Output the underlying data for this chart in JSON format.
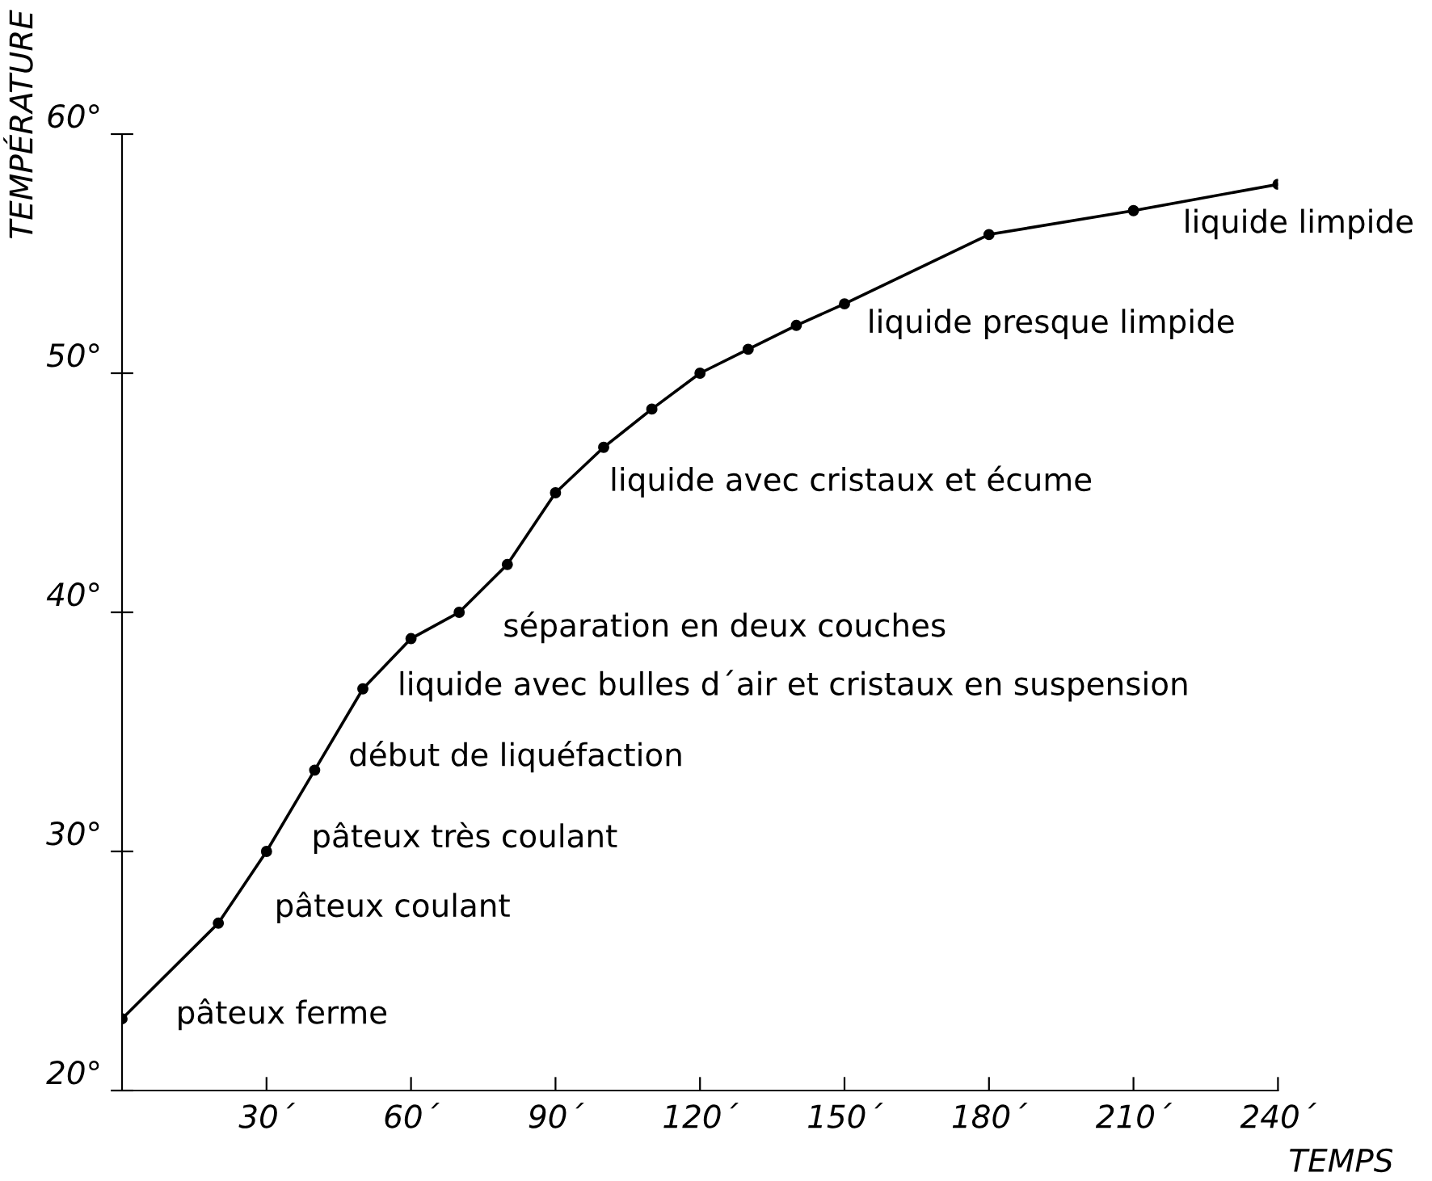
{
  "chart_data": {
    "type": "line",
    "xlabel": "TEMPS",
    "ylabel": "TEMPÉRATURE",
    "x": [
      0,
      20,
      30,
      40,
      50,
      60,
      70,
      80,
      90,
      100,
      110,
      120,
      130,
      140,
      150,
      180,
      210,
      240
    ],
    "values": [
      23,
      27,
      30,
      33.4,
      36.8,
      38.9,
      40,
      42,
      45,
      46.9,
      48.5,
      50,
      51,
      52,
      52.9,
      55.8,
      56.8,
      57.9
    ],
    "color": "#000000",
    "marker": "circle",
    "line_style": "solid",
    "xlim": [
      0,
      240
    ],
    "ylim": [
      20,
      60
    ],
    "xticks": [
      {
        "value": 30,
        "label": "30´"
      },
      {
        "value": 60,
        "label": "60´"
      },
      {
        "value": 90,
        "label": "90´"
      },
      {
        "value": 120,
        "label": "120´"
      },
      {
        "value": 150,
        "label": "150´"
      },
      {
        "value": 180,
        "label": "180´"
      },
      {
        "value": 210,
        "label": "210´"
      },
      {
        "value": 240,
        "label": "240´"
      }
    ],
    "yticks": [
      {
        "value": 20,
        "label": "20°"
      },
      {
        "value": 30,
        "label": "30°"
      },
      {
        "value": 40,
        "label": "40°"
      },
      {
        "value": 50,
        "label": "50°"
      },
      {
        "value": 60,
        "label": "60°"
      }
    ],
    "grid": false,
    "legend": false,
    "annotations": [
      {
        "text": "pâteux ferme",
        "x": 0,
        "y": 23
      },
      {
        "text": "pâteux coulant",
        "x": 20,
        "y": 27
      },
      {
        "text": "pâteux très coulant",
        "x": 30,
        "y": 30
      },
      {
        "text": "début de liquéfaction",
        "x": 40,
        "y": 33.4
      },
      {
        "text": "liquide avec bulles d´air et cristaux en suspension",
        "x": 60,
        "y": 38.9
      },
      {
        "text": "séparation en deux couches",
        "x": 80,
        "y": 42
      },
      {
        "text": "liquide avec cristaux et écume",
        "x": 90,
        "y": 45
      },
      {
        "text": "liquide presque limpide",
        "x": 150,
        "y": 52.9
      },
      {
        "text": "liquide limpide",
        "x": 210,
        "y": 56.8
      }
    ]
  }
}
